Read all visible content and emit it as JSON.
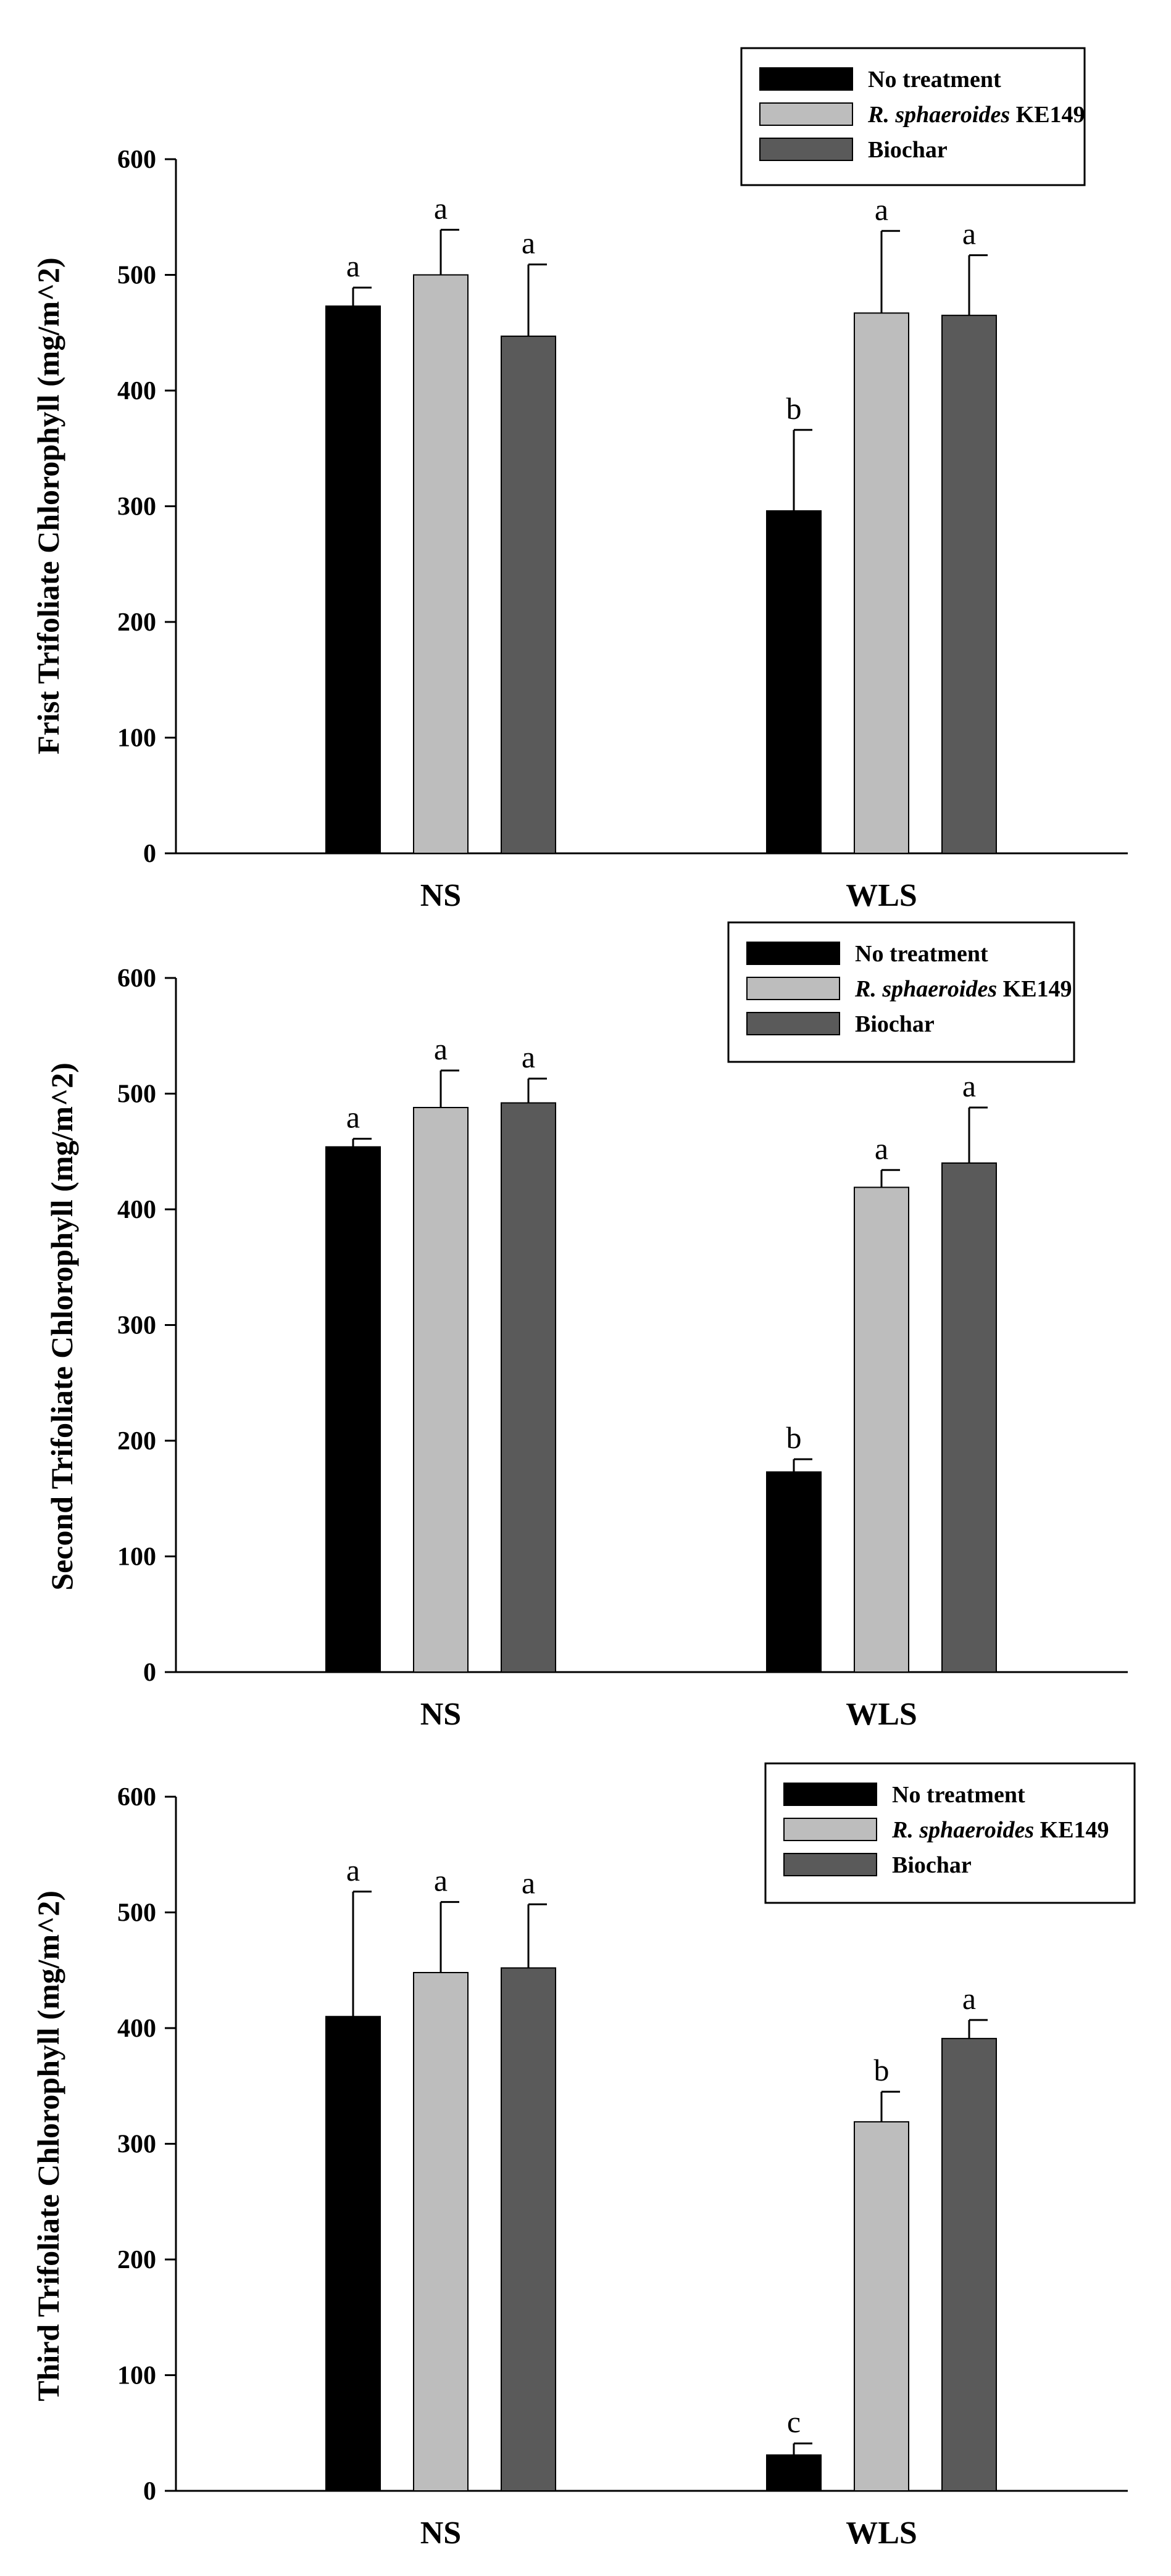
{
  "colors": {
    "series": [
      "#000000",
      "#bdbdbd",
      "#5a5a5a"
    ],
    "axis": "#000000"
  },
  "legend": {
    "entries": [
      {
        "italic": "",
        "text": "No treatment"
      },
      {
        "italic": "R. sphaeroides",
        "text": " KE149"
      },
      {
        "italic": "",
        "text": "Biochar"
      }
    ]
  },
  "chart_data": [
    {
      "type": "bar",
      "title": "",
      "ylabel": "Frist Trifoliate Chlorophyll  (mg/m^2)",
      "xlabel": "",
      "categories": [
        "NS",
        "WLS"
      ],
      "ylim": [
        0,
        600
      ],
      "yticks": [
        "0",
        "100",
        "200",
        "300",
        "400",
        "500",
        "600"
      ],
      "legend_position": "top-right",
      "series": [
        {
          "name": "No treatment",
          "values": [
            473,
            296
          ],
          "errors": [
            16,
            70
          ],
          "letters": [
            "a",
            "b"
          ]
        },
        {
          "name": "R. sphaeroides KE149",
          "values": [
            500,
            467
          ],
          "errors": [
            39,
            71
          ],
          "letters": [
            "a",
            "a"
          ]
        },
        {
          "name": "Biochar",
          "values": [
            447,
            465
          ],
          "errors": [
            62,
            52
          ],
          "letters": [
            "a",
            "a"
          ]
        }
      ]
    },
    {
      "type": "bar",
      "title": "",
      "ylabel": "Second Trifoliate Chlorophyll  (mg/m^2)",
      "xlabel": "",
      "categories": [
        "NS",
        "WLS"
      ],
      "ylim": [
        0,
        600
      ],
      "yticks": [
        "0",
        "100",
        "200",
        "300",
        "400",
        "500",
        "600"
      ],
      "legend_position": "top-right",
      "series": [
        {
          "name": "No treatment",
          "values": [
            454,
            173
          ],
          "errors": [
            7,
            11
          ],
          "letters": [
            "a",
            "b"
          ]
        },
        {
          "name": "R. sphaeroides KE149",
          "values": [
            488,
            419
          ],
          "errors": [
            32,
            15
          ],
          "letters": [
            "a",
            "a"
          ]
        },
        {
          "name": "Biochar",
          "values": [
            492,
            440
          ],
          "errors": [
            21,
            48
          ],
          "letters": [
            "a",
            "a"
          ]
        }
      ]
    },
    {
      "type": "bar",
      "title": "",
      "ylabel": "Third Trifoliate Chlorophyll  (mg/m^2)",
      "xlabel": "",
      "categories": [
        "NS",
        "WLS"
      ],
      "ylim": [
        0,
        600
      ],
      "yticks": [
        "0",
        "100",
        "200",
        "300",
        "400",
        "500",
        "600"
      ],
      "legend_position": "top-right",
      "series": [
        {
          "name": "No treatment",
          "values": [
            410,
            31
          ],
          "errors": [
            108,
            10
          ],
          "letters": [
            "a",
            "c"
          ]
        },
        {
          "name": "R. sphaeroides KE149",
          "values": [
            448,
            319
          ],
          "errors": [
            61,
            26
          ],
          "letters": [
            "a",
            "b"
          ]
        },
        {
          "name": "Biochar",
          "values": [
            452,
            391
          ],
          "errors": [
            55,
            16
          ],
          "letters": [
            "a",
            "a"
          ]
        }
      ]
    }
  ]
}
